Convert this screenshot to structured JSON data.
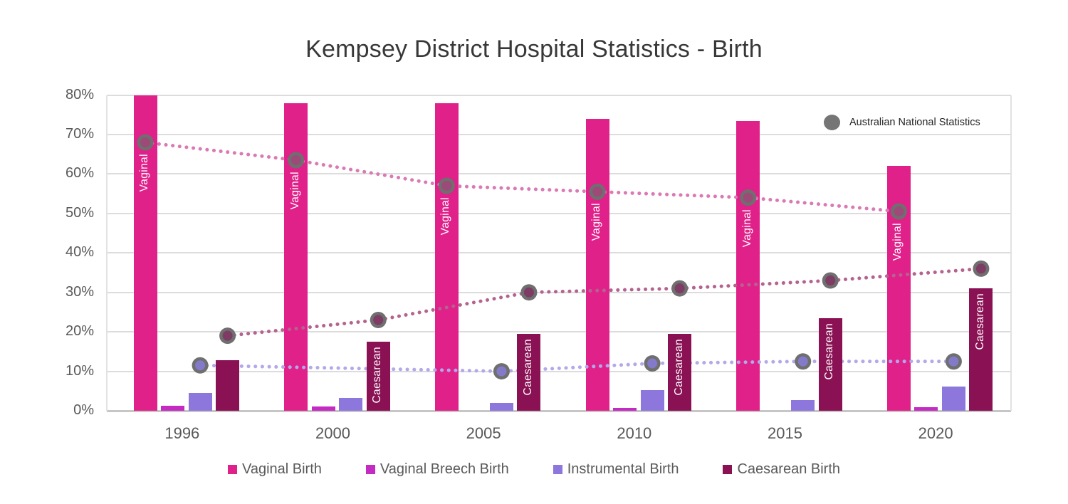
{
  "title": "Kempsey District Hospital Statistics - Birth",
  "annotation_legend": {
    "label": "Australian National Statistics",
    "marker_color": "#757575"
  },
  "chart_data": {
    "type": "bar",
    "title": "Kempsey District Hospital Statistics - Birth",
    "categories": [
      "1996",
      "2000",
      "2005",
      "2010",
      "2015",
      "2020"
    ],
    "ylim": [
      0,
      80
    ],
    "yticks": [
      "0%",
      "10%",
      "20%",
      "30%",
      "40%",
      "50%",
      "60%",
      "70%",
      "80%"
    ],
    "grid": true,
    "legend_position": "bottom",
    "series": [
      {
        "name": "Vaginal Birth",
        "color": "#E0218A",
        "values": [
          80,
          78,
          78,
          74,
          73.5,
          62
        ],
        "bar_label": "Vaginal",
        "bar_label_years": [
          0,
          1,
          2,
          3,
          4,
          5
        ]
      },
      {
        "name": "Vaginal Breech Birth",
        "color": "#C32BC3",
        "values": [
          1.2,
          1,
          null,
          0.7,
          null,
          0.9
        ]
      },
      {
        "name": "Instrumental Birth",
        "color": "#8D76DC",
        "values": [
          4.5,
          3.2,
          2,
          5.3,
          2.7,
          6.2
        ]
      },
      {
        "name": "Caesarean Birth",
        "color": "#8A1254",
        "values": [
          12.8,
          17.5,
          19.5,
          19.5,
          23.5,
          31
        ],
        "bar_label": "Caesarean",
        "bar_label_years": [
          1,
          2,
          3,
          4,
          5
        ]
      }
    ],
    "national_series": [
      {
        "name": "Vaginal - Australian National Statistics",
        "line_color": "#DA79B4",
        "marker_outer": "#6F6F6F",
        "marker_inner": "#9C4A78",
        "anchor_series": 0,
        "values": [
          68,
          63.5,
          57,
          55.5,
          54,
          50.5
        ]
      },
      {
        "name": "Instrumental - Australian National Statistics",
        "line_color": "#B1A9E9",
        "marker_outer": "#6F6F6F",
        "marker_inner": "#837AC9",
        "anchor_series": 2,
        "values": [
          11.5,
          null,
          10,
          12,
          12.5,
          12.5
        ]
      },
      {
        "name": "Caesarean - Australian National Statistics",
        "line_color": "#B4638F",
        "marker_outer": "#6F6F6F",
        "marker_inner": "#7E3B63",
        "anchor_series": 3,
        "values": [
          19,
          23,
          30,
          31,
          33,
          36
        ]
      }
    ]
  }
}
